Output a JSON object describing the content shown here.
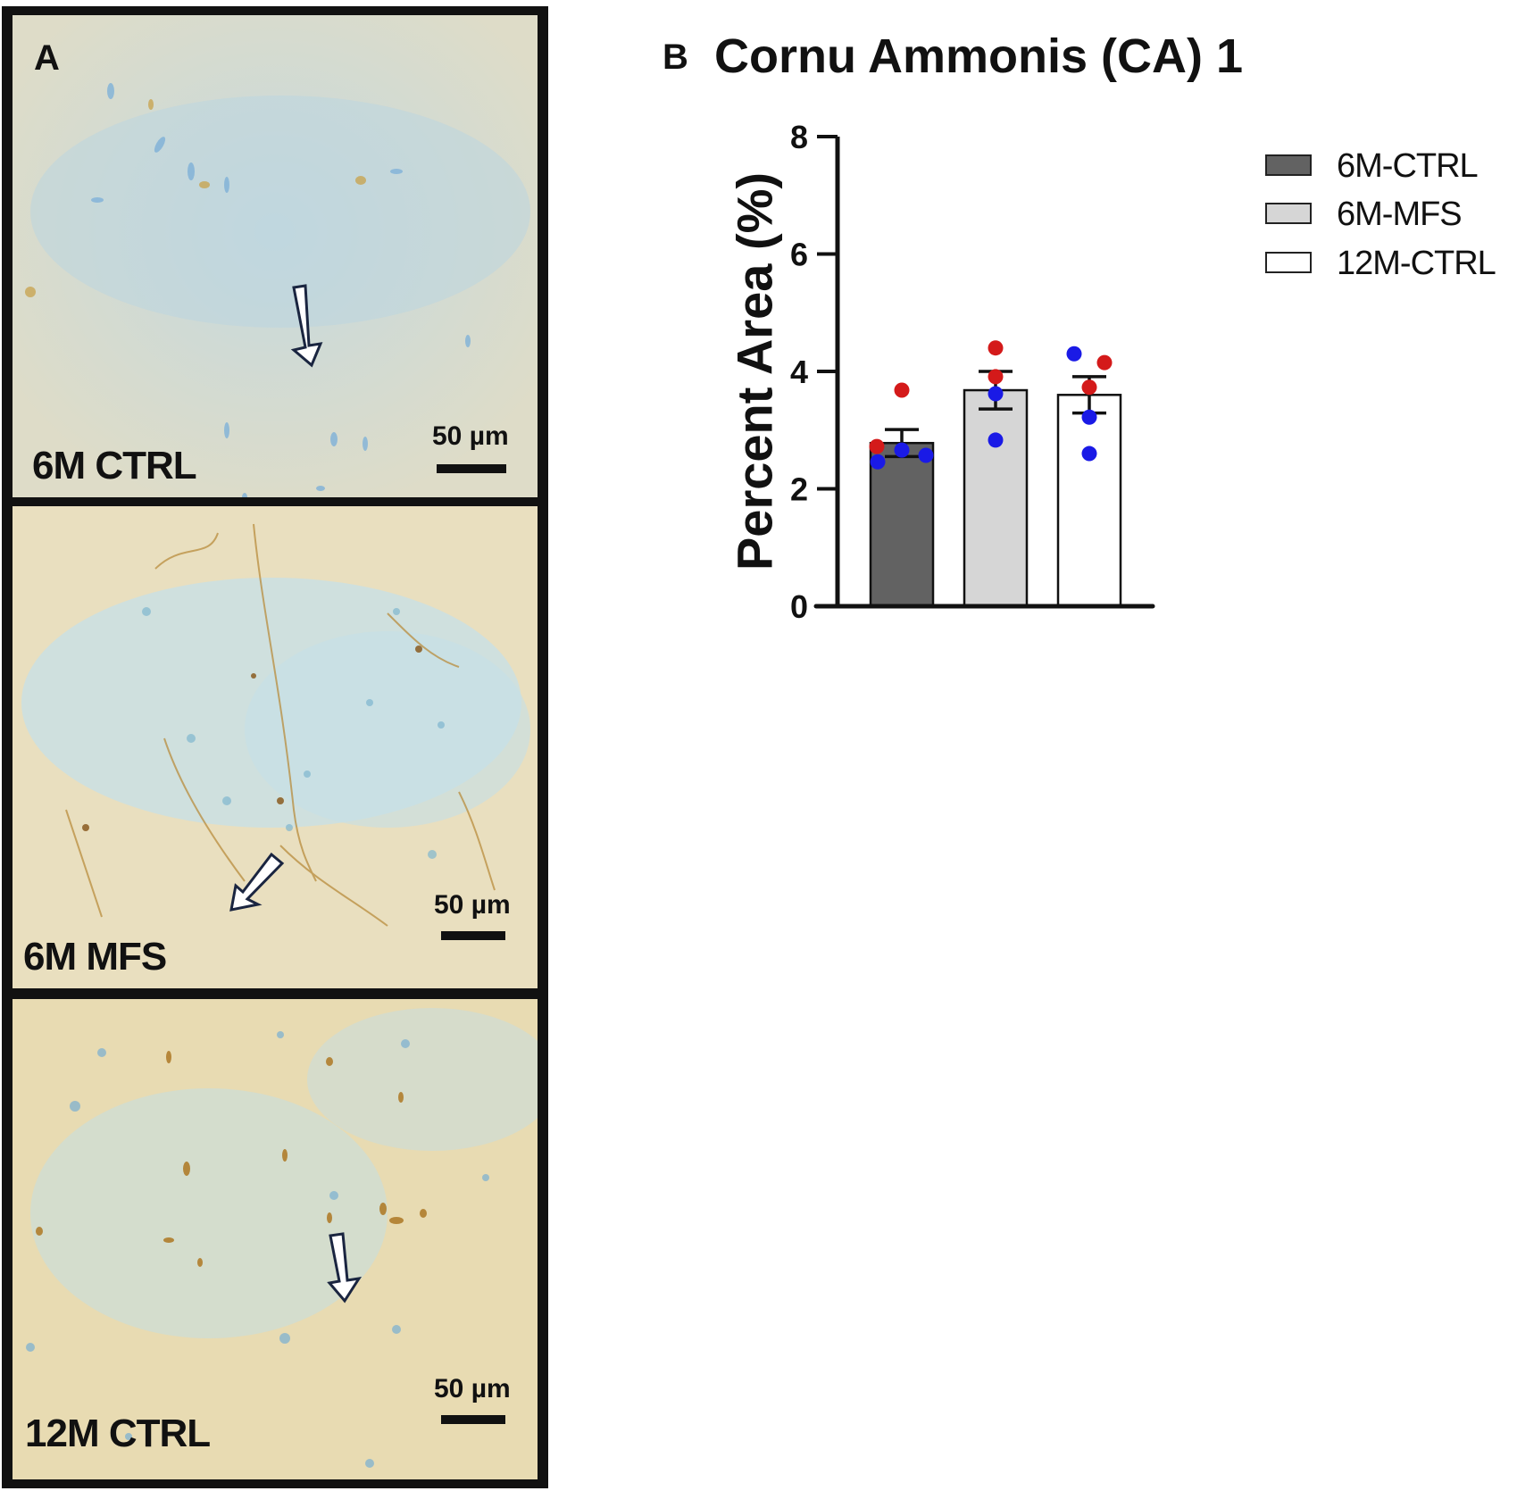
{
  "panel_a": {
    "letter": "A",
    "images": [
      {
        "label": "6M CTRL",
        "scale": "50 µm",
        "tint": "#d7dcc8",
        "stain": "#c8a552"
      },
      {
        "label": "6M MFS",
        "scale": "50 µm",
        "tint": "#e7dcb8",
        "stain": "#b88c3c"
      },
      {
        "label": "12M CTRL",
        "scale": "50 µm",
        "tint": "#e6dab4",
        "stain": "#c49a4a"
      }
    ]
  },
  "panel_b": {
    "letter": "B",
    "title": "Cornu Ammonis (CA) 1"
  },
  "legend": [
    {
      "label": "6M-CTRL",
      "color": "#626262"
    },
    {
      "label": "6M-MFS",
      "color": "#d6d6d6"
    },
    {
      "label": "12M-CTRL",
      "color": "#ffffff"
    }
  ],
  "colors": {
    "female_point": "#d41a1a",
    "male_point": "#1a1ae6",
    "axis": "#111111"
  },
  "chart_data": {
    "type": "bar",
    "title": "Cornu Ammonis (CA) 1",
    "xlabel": "",
    "ylabel": "Percent Area (%)",
    "ylim": [
      0,
      8
    ],
    "yticks": [
      0,
      2,
      4,
      6,
      8
    ],
    "grid": false,
    "legend_position": "right",
    "categories": [
      "6M-CTRL",
      "6M-MFS",
      "12M-CTRL"
    ],
    "values": [
      2.78,
      3.68,
      3.6
    ],
    "error_sem": [
      0.23,
      0.32,
      0.31
    ],
    "bar_colors": [
      "#626262",
      "#d6d6d6",
      "#ffffff"
    ],
    "points": [
      [
        {
          "value": 3.68,
          "color": "red"
        },
        {
          "value": 2.72,
          "color": "red"
        },
        {
          "value": 2.66,
          "color": "blue"
        },
        {
          "value": 2.57,
          "color": "blue"
        },
        {
          "value": 2.46,
          "color": "blue"
        }
      ],
      [
        {
          "value": 4.4,
          "color": "red"
        },
        {
          "value": 3.91,
          "color": "red"
        },
        {
          "value": 3.62,
          "color": "blue"
        },
        {
          "value": 2.83,
          "color": "blue"
        }
      ],
      [
        {
          "value": 4.3,
          "color": "blue"
        },
        {
          "value": 4.15,
          "color": "red"
        },
        {
          "value": 3.73,
          "color": "red"
        },
        {
          "value": 3.22,
          "color": "blue"
        },
        {
          "value": 2.6,
          "color": "blue"
        }
      ]
    ]
  }
}
